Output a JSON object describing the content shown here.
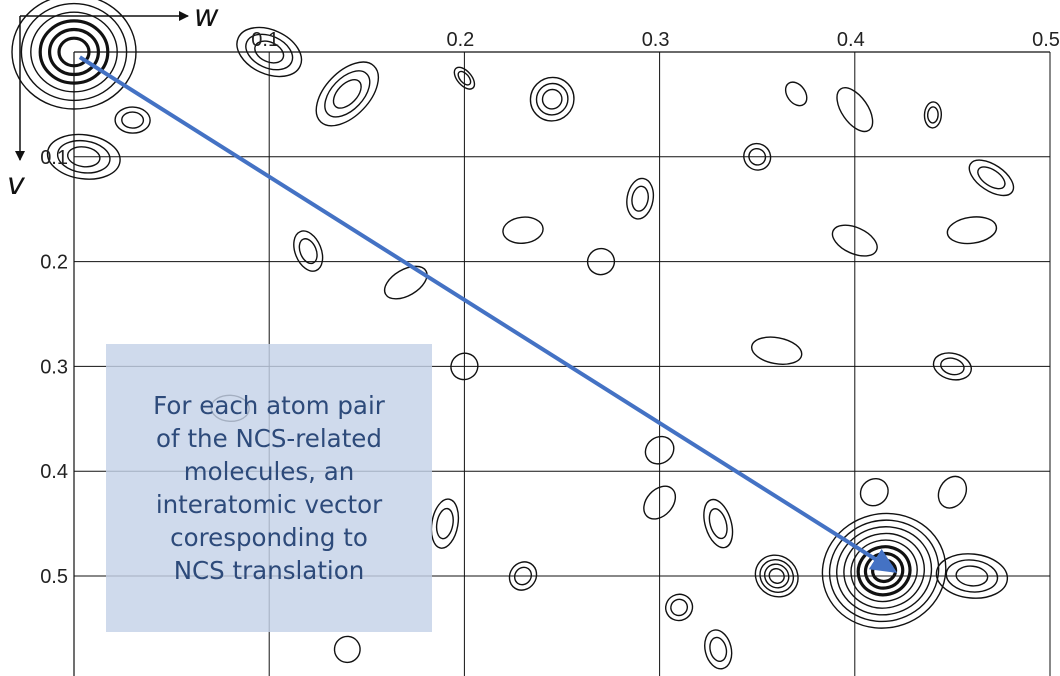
{
  "chart_data": {
    "type": "contour",
    "x_axis": {
      "label": "w",
      "range": [
        0.0,
        0.5
      ],
      "tick_labels": [
        "0.1",
        "0.2",
        "0.3",
        "0.4",
        "0.5"
      ],
      "ticks": [
        0.1,
        0.2,
        0.3,
        0.4,
        0.5
      ],
      "position": "top"
    },
    "y_axis": {
      "label": "v",
      "range": [
        0.0,
        0.58
      ],
      "tick_labels": [
        "0.1",
        "0.2",
        "0.3",
        "0.4",
        "0.5"
      ],
      "ticks": [
        0.1,
        0.2,
        0.3,
        0.4,
        0.5
      ],
      "direction": "down"
    },
    "grid": true,
    "peaks": [
      {
        "w": 0.0,
        "v": 0.0,
        "strength": "strong",
        "rings": 6
      },
      {
        "w": 0.415,
        "v": 0.495,
        "strength": "strong",
        "rings": 8
      },
      {
        "w": 0.36,
        "v": 0.5,
        "strength": "medium",
        "rings": 4
      },
      {
        "w": 0.46,
        "v": 0.5,
        "strength": "medium",
        "rings": 3
      },
      {
        "w": 0.245,
        "v": 0.045,
        "strength": "medium",
        "rings": 3
      },
      {
        "w": 0.005,
        "v": 0.1,
        "strength": "medium",
        "rings": 3
      },
      {
        "w": 0.1,
        "v": 0.0,
        "strength": "medium",
        "rings": 3
      },
      {
        "w": 0.14,
        "v": 0.04,
        "strength": "medium",
        "rings": 3
      },
      {
        "w": 0.35,
        "v": 0.1,
        "strength": "weak",
        "rings": 2
      },
      {
        "w": 0.29,
        "v": 0.14,
        "strength": "weak",
        "rings": 2
      },
      {
        "w": 0.23,
        "v": 0.17,
        "strength": "weak",
        "rings": 1
      },
      {
        "w": 0.4,
        "v": 0.055,
        "strength": "weak",
        "rings": 1
      },
      {
        "w": 0.44,
        "v": 0.06,
        "strength": "weak",
        "rings": 2
      },
      {
        "w": 0.47,
        "v": 0.12,
        "strength": "weak",
        "rings": 2
      },
      {
        "w": 0.45,
        "v": 0.3,
        "strength": "weak",
        "rings": 2
      },
      {
        "w": 0.33,
        "v": 0.45,
        "strength": "weak",
        "rings": 2
      },
      {
        "w": 0.2,
        "v": 0.3,
        "strength": "weak",
        "rings": 1
      },
      {
        "w": 0.17,
        "v": 0.22,
        "strength": "weak",
        "rings": 1
      },
      {
        "w": 0.37,
        "v": 0.04,
        "strength": "weak",
        "rings": 1
      },
      {
        "w": 0.3,
        "v": 0.38,
        "strength": "weak",
        "rings": 1
      },
      {
        "w": 0.36,
        "v": 0.285,
        "strength": "weak",
        "rings": 1
      },
      {
        "w": 0.12,
        "v": 0.19,
        "strength": "weak",
        "rings": 2
      },
      {
        "w": 0.2,
        "v": 0.025,
        "strength": "weak",
        "rings": 2
      },
      {
        "w": 0.03,
        "v": 0.065,
        "strength": "weak",
        "rings": 2
      },
      {
        "w": 0.23,
        "v": 0.5,
        "strength": "weak",
        "rings": 2
      },
      {
        "w": 0.19,
        "v": 0.45,
        "strength": "weak",
        "rings": 2
      },
      {
        "w": 0.31,
        "v": 0.53,
        "strength": "weak",
        "rings": 2
      },
      {
        "w": 0.33,
        "v": 0.57,
        "strength": "weak",
        "rings": 2
      },
      {
        "w": 0.45,
        "v": 0.42,
        "strength": "weak",
        "rings": 1
      },
      {
        "w": 0.41,
        "v": 0.42,
        "strength": "weak",
        "rings": 1
      },
      {
        "w": 0.27,
        "v": 0.2,
        "strength": "weak",
        "rings": 1
      },
      {
        "w": 0.14,
        "v": 0.57,
        "strength": "weak",
        "rings": 1
      },
      {
        "w": 0.3,
        "v": 0.43,
        "strength": "weak",
        "rings": 1
      },
      {
        "w": 0.46,
        "v": 0.17,
        "strength": "weak",
        "rings": 1
      },
      {
        "w": 0.4,
        "v": 0.18,
        "strength": "weak",
        "rings": 1
      },
      {
        "w": 0.08,
        "v": 0.34,
        "strength": "weak",
        "rings": 1
      }
    ],
    "annotation": {
      "arrow_from": {
        "w": 0.003,
        "v": 0.005
      },
      "arrow_to": {
        "w": 0.42,
        "v": 0.495
      },
      "arrow_color": "#4472c4",
      "text_lines": [
        "For each atom pair",
        "of the NCS-related",
        "molecules, an",
        "interatomic vector",
        "coresponding to",
        "NCS translation"
      ]
    }
  }
}
